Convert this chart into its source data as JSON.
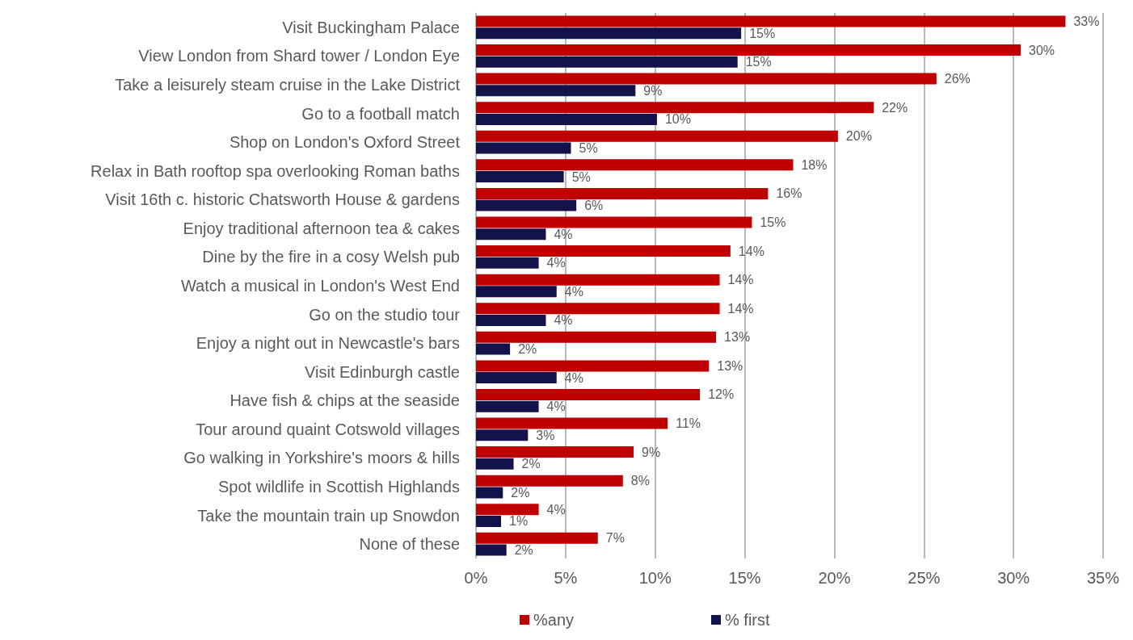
{
  "chart_data": {
    "type": "bar",
    "orientation": "horizontal",
    "categories": [
      "Visit Buckingham Palace",
      "View London from Shard tower / London Eye",
      "Take a leisurely steam cruise in the Lake District",
      "Go to a football match",
      "Shop on London's Oxford Street",
      "Relax in Bath rooftop spa overlooking Roman baths",
      "Visit 16th c. historic Chatsworth House & gardens",
      "Enjoy traditional afternoon tea & cakes",
      "Dine by the fire in a cosy Welsh pub",
      "Watch a musical in London's West End",
      "Go on the studio tour",
      "Enjoy a night out in Newcastle's bars",
      "Visit Edinburgh castle",
      "Have fish & chips at the seaside",
      "Tour around quaint Cotswold villages",
      "Go walking in Yorkshire's moors & hills",
      "Spot wildlife in Scottish Highlands",
      "Take the mountain train up Snowdon",
      "None of these"
    ],
    "series": [
      {
        "name": "%any",
        "color": "#c00000",
        "values": [
          32.9,
          30.4,
          25.7,
          22.2,
          20.2,
          17.7,
          16.3,
          15.4,
          14.2,
          13.6,
          13.6,
          13.4,
          13.0,
          12.5,
          10.7,
          8.8,
          8.2,
          3.5,
          6.8
        ],
        "value_labels": [
          "33%",
          "30%",
          "26%",
          "22%",
          "20%",
          "18%",
          "16%",
          "15%",
          "14%",
          "14%",
          "14%",
          "13%",
          "13%",
          "12%",
          "11%",
          "9%",
          "8%",
          "4%",
          "7%"
        ]
      },
      {
        "name": "% first",
        "color": "#14124a",
        "values": [
          14.8,
          14.6,
          8.9,
          10.1,
          5.3,
          4.9,
          5.6,
          3.9,
          3.5,
          4.5,
          3.9,
          1.9,
          4.5,
          3.5,
          2.9,
          2.1,
          1.5,
          1.4,
          1.7
        ],
        "value_labels": [
          "15%",
          "15%",
          "9%",
          "10%",
          "5%",
          "5%",
          "6%",
          "4%",
          "4%",
          "4%",
          "4%",
          "2%",
          "4%",
          "4%",
          "3%",
          "2%",
          "2%",
          "1%",
          "2%"
        ]
      }
    ],
    "xlim": [
      0,
      35
    ],
    "xticks": [
      {
        "value": 0,
        "label": "0%"
      },
      {
        "value": 5,
        "label": "5%"
      },
      {
        "value": 10,
        "label": "10%"
      },
      {
        "value": 15,
        "label": "15%"
      },
      {
        "value": 20,
        "label": "20%"
      },
      {
        "value": 25,
        "label": "25%"
      },
      {
        "value": 30,
        "label": "30%"
      },
      {
        "value": 35,
        "label": "35%"
      }
    ],
    "grid": "x",
    "legend": "bottom"
  }
}
